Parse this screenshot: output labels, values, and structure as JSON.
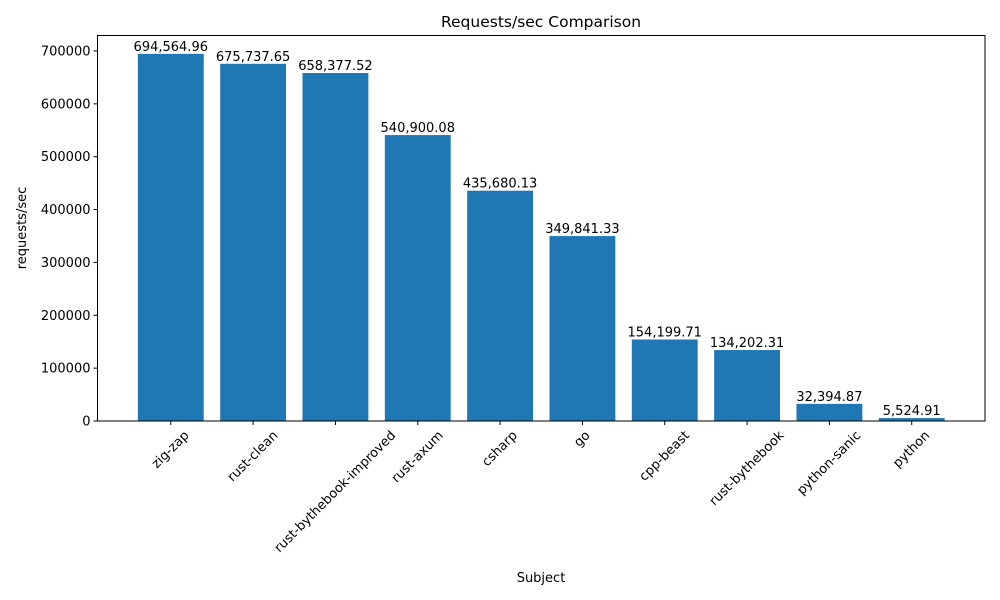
{
  "chart_data": {
    "type": "bar",
    "title": "Requests/sec Comparison",
    "xlabel": "Subject",
    "ylabel": "requests/sec",
    "categories": [
      "zig-zap",
      "rust-clean",
      "rust-bythebook-improved",
      "rust-axum",
      "csharp",
      "go",
      "cpp-beast",
      "rust-bythebook",
      "python-sanic",
      "python"
    ],
    "values": [
      694564.96,
      675737.65,
      658377.52,
      540900.08,
      435680.13,
      349841.33,
      154199.71,
      134202.31,
      32394.87,
      5524.91
    ],
    "data_labels": [
      "694,564.96",
      "675,737.65",
      "658,377.52",
      "540,900.08",
      "435,680.13",
      "349,841.33",
      "154,199.71",
      "134,202.31",
      "32,394.87",
      "5,524.91"
    ],
    "yticks": [
      "0",
      "100000",
      "200000",
      "300000",
      "400000",
      "500000",
      "600000",
      "700000"
    ],
    "ylim": [
      0,
      729293
    ],
    "grid": false,
    "bar_color": "#1f77b4"
  }
}
